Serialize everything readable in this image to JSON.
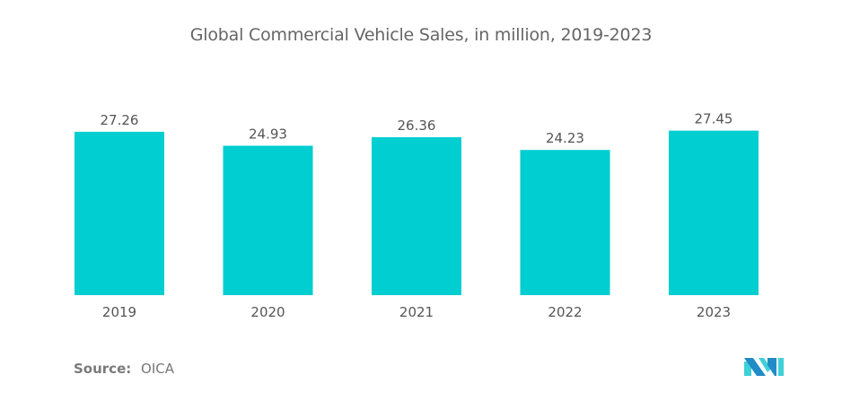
{
  "chart_data": {
    "type": "bar",
    "title": "Global Commercial Vehicle Sales, in million, 2019-2023",
    "categories": [
      "2019",
      "2020",
      "2021",
      "2022",
      "2023"
    ],
    "values": [
      27.26,
      24.93,
      26.36,
      24.23,
      27.45
    ],
    "value_labels": [
      "27.26",
      "24.93",
      "26.36",
      "24.23",
      "27.45"
    ],
    "xlabel": "",
    "ylabel": "",
    "ylim": [
      0,
      30
    ],
    "grid": false,
    "legend": "none",
    "bar_color": "#00CED1"
  },
  "footer": {
    "source_key": "Source:",
    "source_value": "OICA"
  },
  "logo": {
    "icon": "mordor-intelligence-logo-icon",
    "colors": [
      "#1F8CC8",
      "#3FD0D8"
    ]
  }
}
